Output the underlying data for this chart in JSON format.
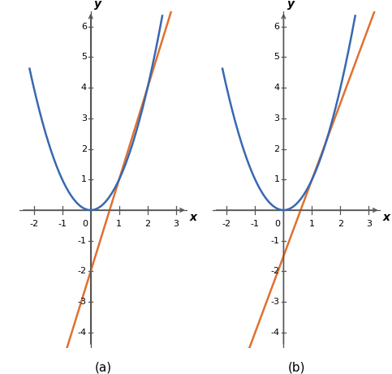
{
  "xlim": [
    -2.5,
    3.4
  ],
  "ylim": [
    -4.5,
    6.5
  ],
  "xticks": [
    -2,
    -1,
    1,
    2,
    3
  ],
  "yticks": [
    -4,
    -3,
    -2,
    -1,
    1,
    2,
    3,
    4,
    5,
    6
  ],
  "x0_label": "0",
  "parabola_color": "#3868b0",
  "secant_color": "#e07030",
  "parabola_lw": 1.8,
  "secant_lw": 1.8,
  "subplot_labels": [
    "(a)",
    "(b)"
  ],
  "secant_a": {
    "slope": 3,
    "intercept": -2
  },
  "secant_b": {
    "slope": 2.5,
    "intercept": -1.5
  },
  "axis_color": "#555555",
  "tick_label_fontsize": 8,
  "subplot_label_fontsize": 11,
  "xlabel": "x",
  "ylabel": "y",
  "parabola_xmin": -2.15,
  "parabola_xmax": 2.52
}
